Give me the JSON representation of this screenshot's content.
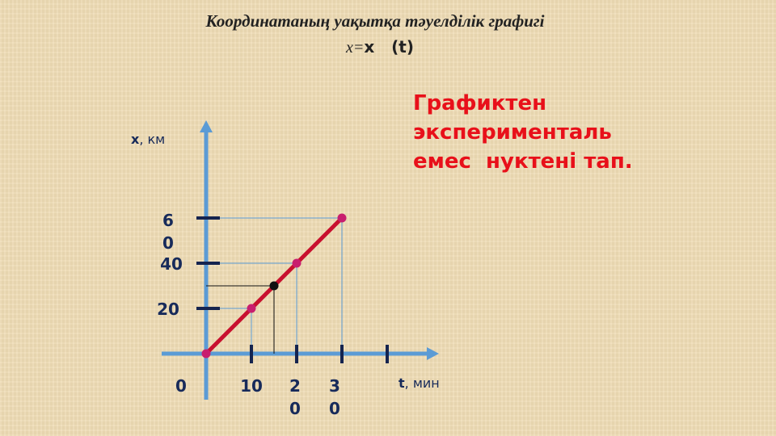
{
  "slide": {
    "title": "Координатаның уақытқа тәуелділік графигі",
    "formula_lhs": "x=",
    "formula_rhs": "x   (t)",
    "task": "Графиктен\nэксперименталь\nемес  нуктені тап."
  },
  "chart_data": {
    "type": "line",
    "xlabel_var": "t",
    "xlabel_unit": ", мин",
    "ylabel_var": "x",
    "ylabel_unit": ", км",
    "origin_label": "0",
    "x_ticks": [
      10,
      20,
      30,
      40
    ],
    "x_tick_labels": [
      "10",
      "20",
      "30"
    ],
    "y_ticks": [
      20,
      40,
      60
    ],
    "y_tick_labels": [
      "20",
      "40",
      "60"
    ],
    "xlim": [
      0,
      50
    ],
    "ylim": [
      0,
      100
    ],
    "series": [
      {
        "points": [
          {
            "t": 0,
            "x": 0
          },
          {
            "t": 10,
            "x": 20
          },
          {
            "t": 20,
            "x": 40
          },
          {
            "t": 30,
            "x": 60
          }
        ],
        "color": "#c8102e",
        "marker_color": "#c81e6e"
      }
    ],
    "highlighted_point": {
      "t": 15,
      "x": 30,
      "color": "#111111"
    },
    "axis_color": "#5b9bd5",
    "tick_color": "#15244f"
  }
}
